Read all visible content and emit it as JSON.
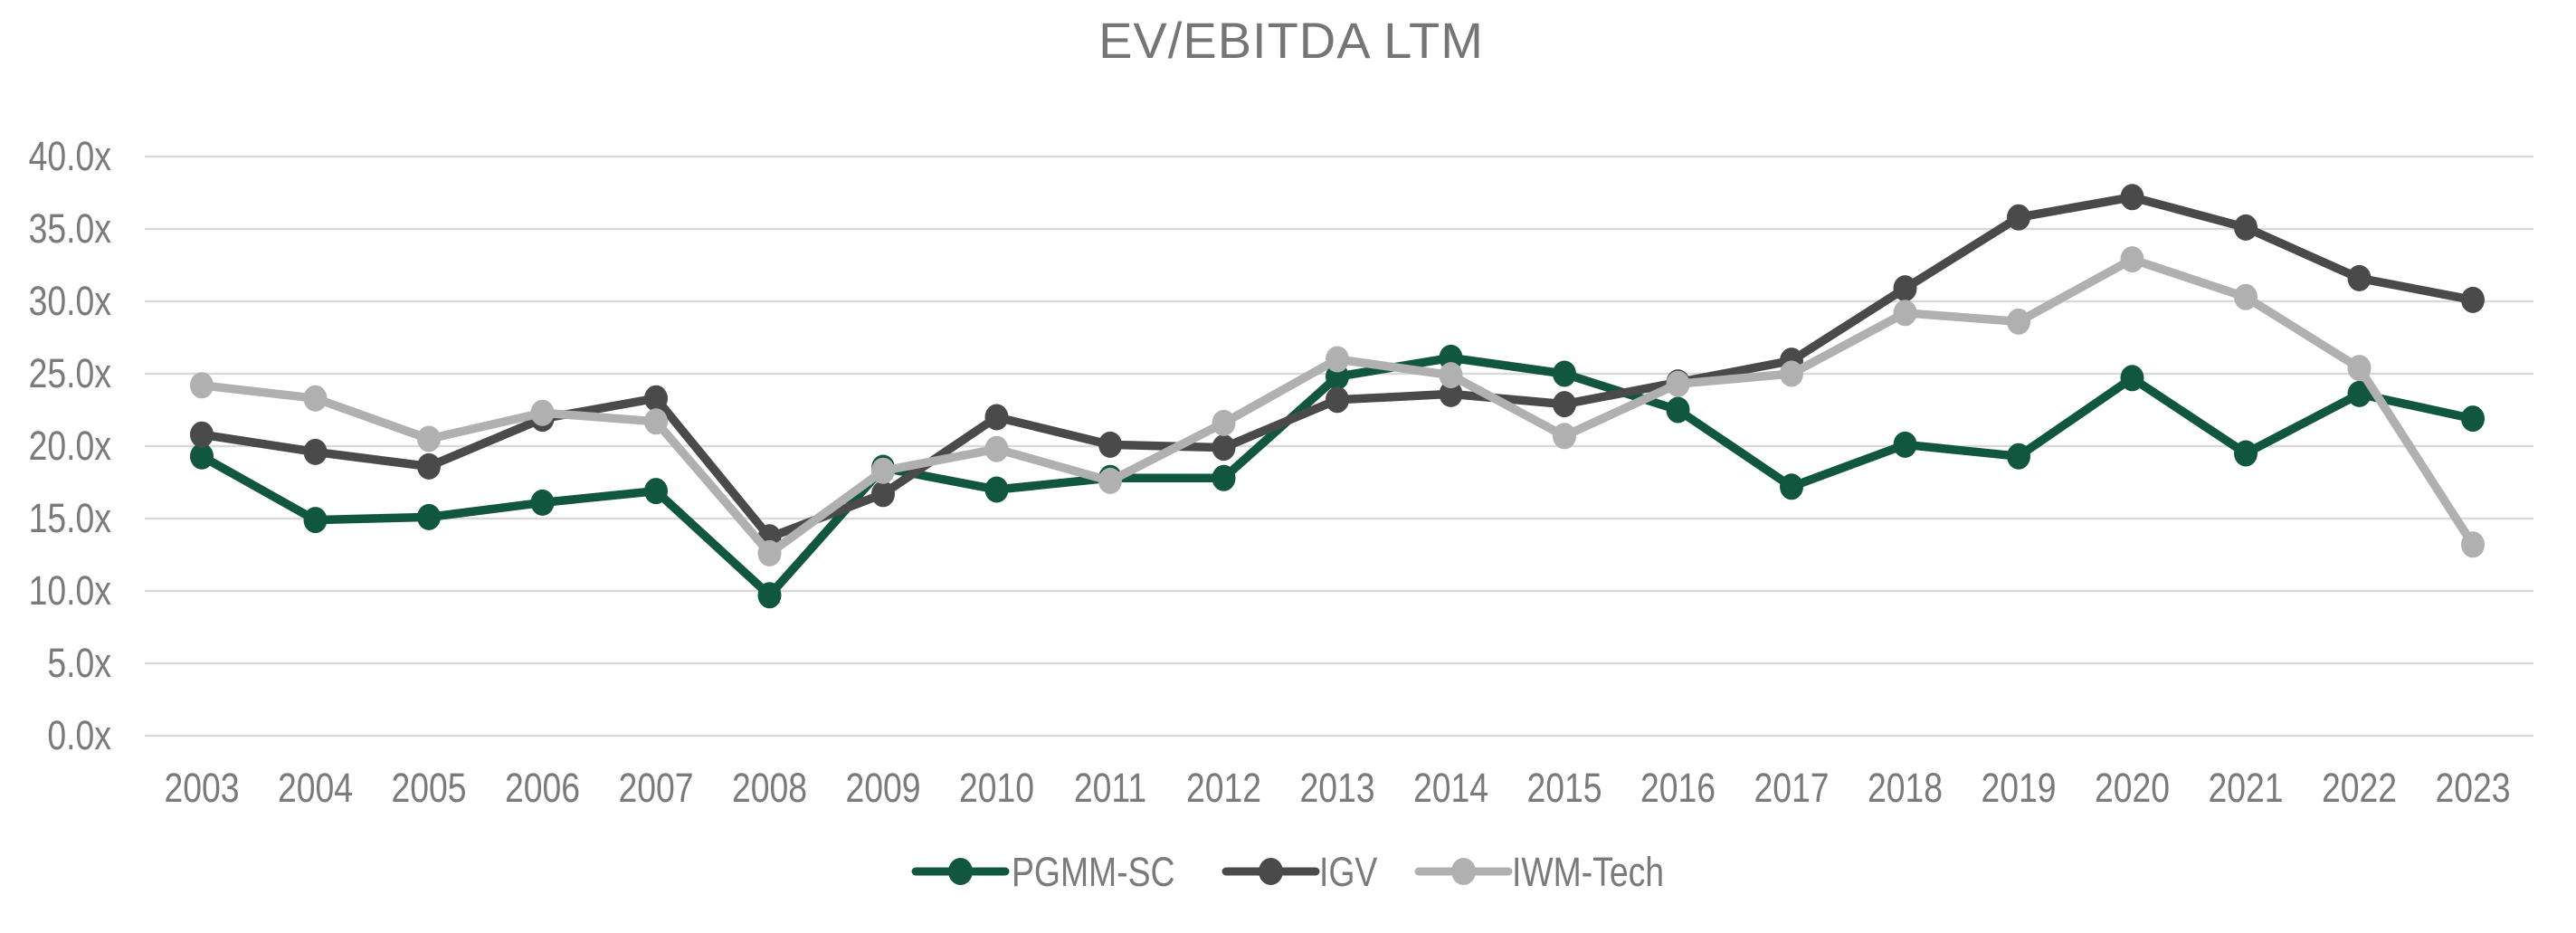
{
  "title": "EV/EBITDA LTM",
  "chart_data": {
    "type": "line",
    "title": "EV/EBITDA LTM",
    "categories": [
      "2003",
      "2004",
      "2005",
      "2006",
      "2007",
      "2008",
      "2009",
      "2010",
      "2011",
      "2012",
      "2013",
      "2014",
      "2015",
      "2016",
      "2017",
      "2018",
      "2019",
      "2020",
      "2021",
      "2022",
      "2023"
    ],
    "series": [
      {
        "name": "PGMM-SC",
        "color": "#115740",
        "values": [
          19.3,
          14.9,
          15.1,
          16.1,
          16.9,
          9.7,
          18.5,
          17.0,
          17.8,
          17.8,
          24.8,
          26.1,
          25.0,
          22.5,
          17.2,
          20.1,
          19.3,
          24.7,
          19.5,
          23.6,
          21.9
        ]
      },
      {
        "name": "IGV",
        "color": "#4a4a4a",
        "values": [
          20.8,
          19.6,
          18.6,
          21.9,
          23.3,
          13.7,
          16.7,
          22.0,
          20.1,
          19.9,
          23.2,
          23.6,
          22.9,
          24.4,
          25.9,
          30.9,
          35.8,
          37.2,
          35.1,
          31.6,
          30.1
        ]
      },
      {
        "name": "IWM-Tech",
        "color": "#b0b0b0",
        "values": [
          24.2,
          23.3,
          20.5,
          22.3,
          21.7,
          12.6,
          18.3,
          19.8,
          17.6,
          21.6,
          26.0,
          24.9,
          20.7,
          24.3,
          25.0,
          29.2,
          28.6,
          32.9,
          30.3,
          25.4,
          13.2
        ]
      }
    ],
    "ylim": [
      0,
      40
    ],
    "ytick_step": 5,
    "ytick_suffix": "x",
    "ytick_labels": [
      "0.0x",
      "5.0x",
      "10.0x",
      "15.0x",
      "20.0x",
      "25.0x",
      "30.0x",
      "35.0x",
      "40.0x"
    ],
    "grid": true,
    "legend_position": "bottom",
    "colors": {
      "background": "#ffffff",
      "gridline": "#d9d9d9",
      "axis_text": "#7a7a7a",
      "title_text": "#757575"
    }
  }
}
